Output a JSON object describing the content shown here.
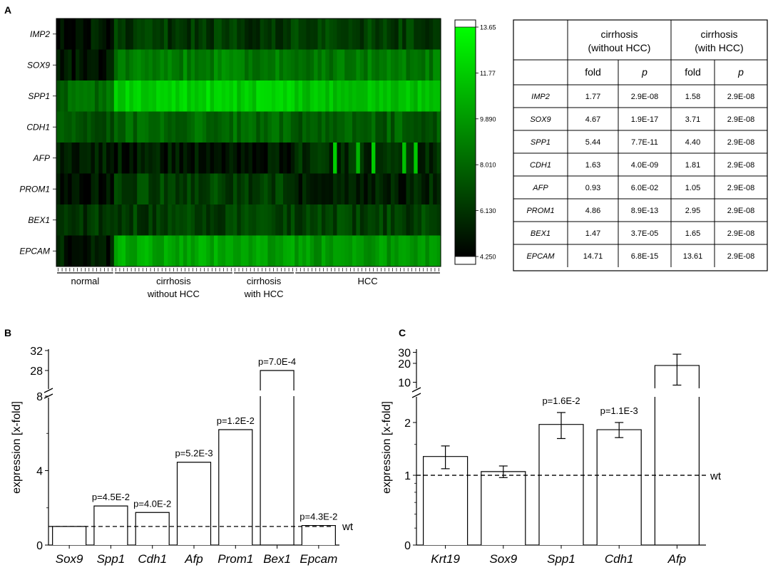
{
  "panels": {
    "a": "A",
    "b": "B",
    "c": "C"
  },
  "heatmap": {
    "genes": [
      "IMP2",
      "SOX9",
      "SPP1",
      "CDH1",
      "AFP",
      "PROM1",
      "BEX1",
      "EPCAM"
    ],
    "groups": [
      {
        "line1": "normal",
        "line2": "",
        "columns": 15
      },
      {
        "line1": "cirrhosis",
        "line2": "without HCC",
        "columns": 31
      },
      {
        "line1": "cirrhosis",
        "line2": "with HCC",
        "columns": 16
      },
      {
        "line1": "HCC",
        "line2": "",
        "columns": 38
      }
    ],
    "group_means": [
      [
        4.9,
        6.0,
        5.9,
        6.2
      ],
      [
        5.0,
        8.6,
        8.4,
        8.3
      ],
      [
        7.7,
        11.9,
        11.6,
        11.2
      ],
      [
        7.1,
        7.7,
        7.8,
        7.3
      ],
      [
        5.3,
        4.9,
        4.8,
        5.6
      ],
      [
        4.6,
        6.4,
        6.1,
        5.2
      ],
      [
        5.8,
        6.2,
        6.3,
        6.3
      ],
      [
        5.0,
        10.2,
        9.9,
        9.5
      ]
    ],
    "colorbar": {
      "ticks": [
        "13.65",
        "11.77",
        "9.890",
        "8.010",
        "6.130",
        "4.250"
      ],
      "min": 4.25,
      "max": 13.65,
      "color_high": "#00ff00",
      "color_low": "#000000"
    }
  },
  "table": {
    "col_groups": [
      {
        "line1": "cirrhosis",
        "line2": "(without HCC)"
      },
      {
        "line1": "cirrhosis",
        "line2": "(with HCC)"
      }
    ],
    "sub_headers": [
      "fold",
      "p",
      "fold",
      "p"
    ],
    "rows": [
      {
        "gene": "IMP2",
        "values": [
          "1.77",
          "2.9E-08",
          "1.58",
          "2.9E-08"
        ]
      },
      {
        "gene": "SOX9",
        "values": [
          "4.67",
          "1.9E-17",
          "3.71",
          "2.9E-08"
        ]
      },
      {
        "gene": "SPP1",
        "values": [
          "5.44",
          "7.7E-11",
          "4.40",
          "2.9E-08"
        ]
      },
      {
        "gene": "CDH1",
        "values": [
          "1.63",
          "4.0E-09",
          "1.81",
          "2.9E-08"
        ]
      },
      {
        "gene": "AFP",
        "values": [
          "0.93",
          "6.0E-02",
          "1.05",
          "2.9E-08"
        ]
      },
      {
        "gene": "PROM1",
        "values": [
          "4.86",
          "8.9E-13",
          "2.95",
          "2.9E-08"
        ]
      },
      {
        "gene": "BEX1",
        "values": [
          "1.47",
          "3.7E-05",
          "1.65",
          "2.9E-08"
        ]
      },
      {
        "gene": "EPCAM",
        "values": [
          "14.71",
          "6.8E-15",
          "13.61",
          "2.9E-08"
        ]
      }
    ]
  },
  "chart_data": [
    {
      "type": "bar",
      "panel": "B",
      "ylabel": "expression [x-fold]",
      "categories": [
        "Sox9",
        "Spp1",
        "Cdh1",
        "Afp",
        "Prom1",
        "Bex1",
        "Epcam"
      ],
      "values": [
        1.0,
        2.1,
        1.75,
        4.45,
        6.2,
        28.0,
        1.05
      ],
      "pvalues": [
        "",
        "p=4.5E-2",
        "p=4.0E-2",
        "p=5.2E-3",
        "p=1.2E-2",
        "p=7.0E-4",
        "p=4.3E-2"
      ],
      "reference_line": {
        "value": 1,
        "label": "wt"
      },
      "ylim_lower": [
        0,
        8
      ],
      "ylim_upper": [
        24,
        32
      ],
      "yticks_lower": [
        "0",
        "4",
        "8"
      ],
      "yticks_upper": [
        "28",
        "32"
      ]
    },
    {
      "type": "bar",
      "panel": "C",
      "ylabel": "expression [x-fold]",
      "categories": [
        "Krt19",
        "Sox9",
        "Spp1",
        "Cdh1",
        "Afp"
      ],
      "values": [
        1.28,
        1.05,
        1.95,
        1.82,
        18.5
      ],
      "errors": [
        0.19,
        0.08,
        0.33,
        0.18,
        9.5
      ],
      "pvalues": [
        "",
        "",
        "p=1.6E-2",
        "p=1.1E-3",
        ""
      ],
      "reference_line": {
        "value": 1,
        "label": "wt"
      },
      "yscale": "log",
      "ylim_lower": [
        0.4,
        2.8
      ],
      "ylim_upper": [
        8,
        32
      ],
      "yticks_lower": [
        "0",
        "1",
        "2"
      ],
      "yticks_upper": [
        "10",
        "20",
        "30"
      ]
    }
  ]
}
